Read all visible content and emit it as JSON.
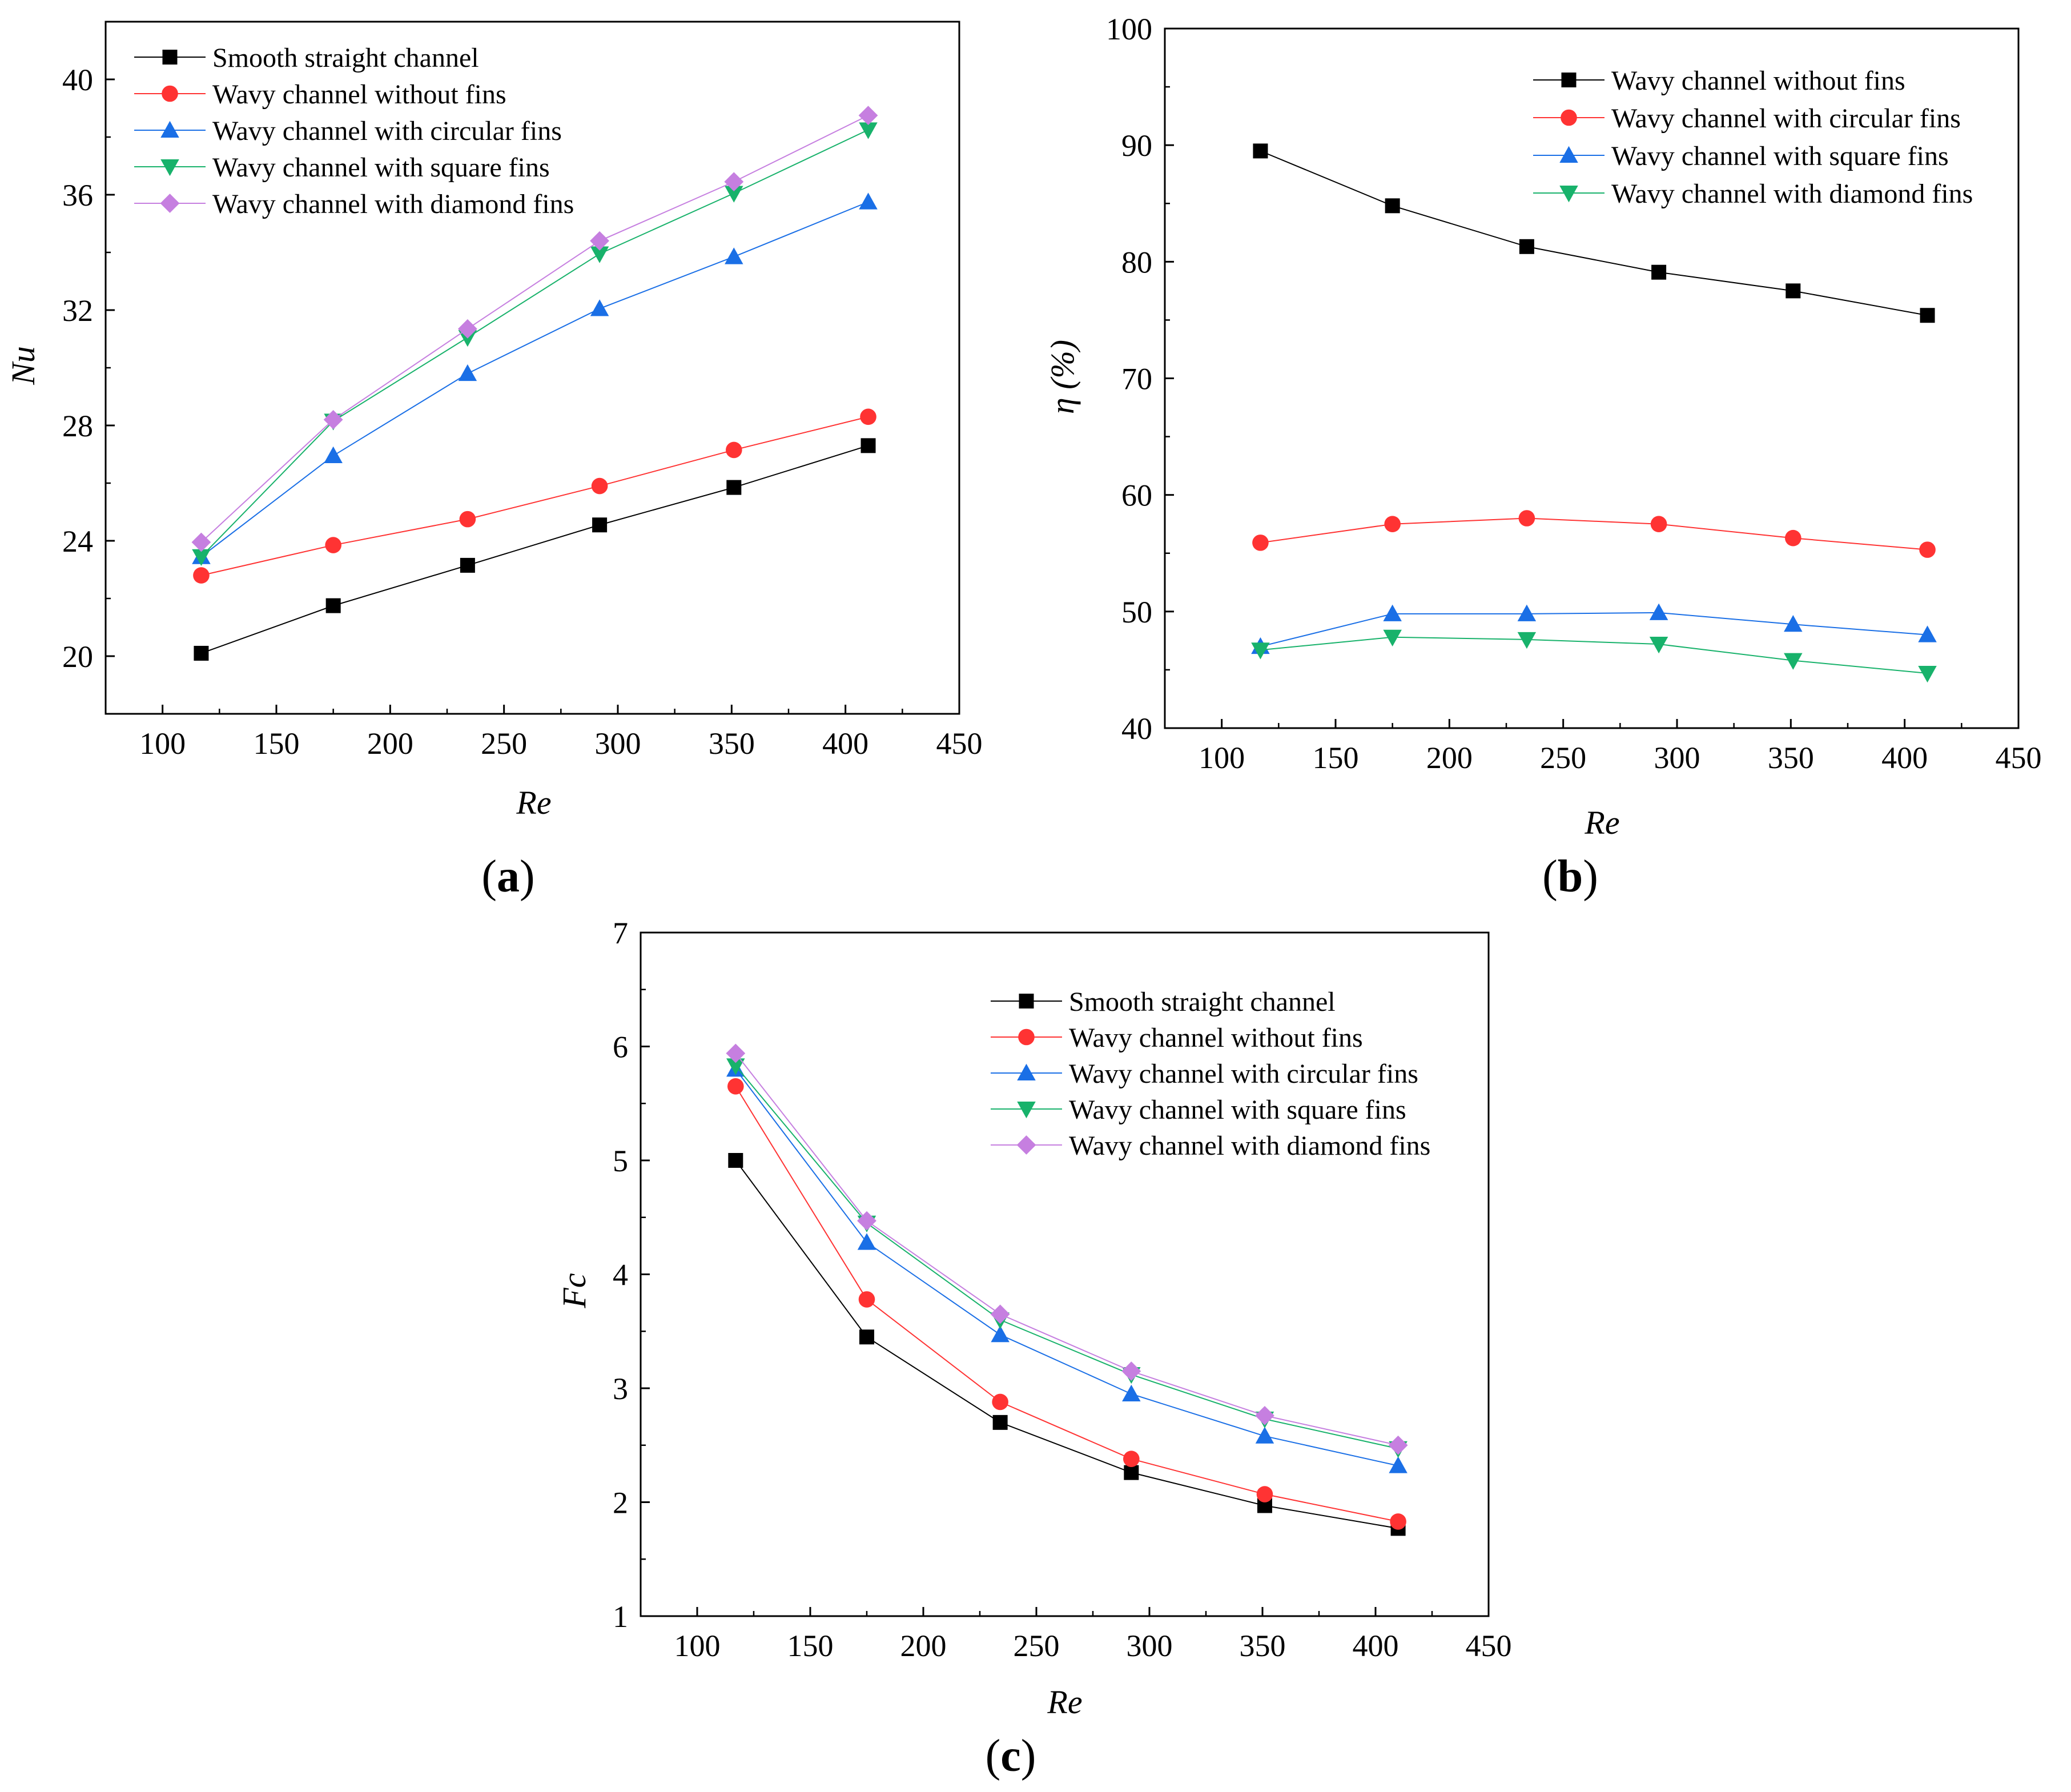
{
  "chart_data": [
    {
      "id": "a",
      "type": "line",
      "caption": "a",
      "xlabel": "Re",
      "ylabel": "Nu",
      "xlim": [
        75,
        450
      ],
      "ylim": [
        18,
        42
      ],
      "xticks": [
        100,
        150,
        200,
        250,
        300,
        350,
        400,
        450
      ],
      "yticks": [
        20,
        24,
        28,
        32,
        36,
        40
      ],
      "x": [
        117,
        175,
        234,
        292,
        351,
        410
      ],
      "legend_position": "top-left",
      "series": [
        {
          "name": "Smooth straight channel",
          "color": "#000000",
          "marker": "square",
          "values": [
            20.1,
            21.75,
            23.15,
            24.55,
            25.85,
            27.3
          ]
        },
        {
          "name": "Wavy channel without fins",
          "color": "#ff3333",
          "marker": "circle",
          "values": [
            22.8,
            23.85,
            24.75,
            25.9,
            27.15,
            28.3
          ]
        },
        {
          "name": "Wavy channel with circular fins",
          "color": "#1a6fe6",
          "marker": "triangle-up",
          "values": [
            23.45,
            26.95,
            29.8,
            32.05,
            33.85,
            35.75
          ]
        },
        {
          "name": "Wavy channel with square fins",
          "color": "#18b26b",
          "marker": "triangle-down",
          "values": [
            23.45,
            28.15,
            31.05,
            33.95,
            36.05,
            38.25
          ]
        },
        {
          "name": "Wavy channel with diamond fins",
          "color": "#c67fe0",
          "marker": "diamond",
          "values": [
            23.95,
            28.2,
            31.35,
            34.4,
            36.45,
            38.75
          ]
        }
      ]
    },
    {
      "id": "b",
      "type": "line",
      "caption": "b",
      "xlabel": "Re",
      "ylabel": "η (%)",
      "xlim": [
        75,
        450
      ],
      "ylim": [
        40,
        100
      ],
      "xticks": [
        100,
        150,
        200,
        250,
        300,
        350,
        400,
        450
      ],
      "yticks": [
        40,
        50,
        60,
        70,
        80,
        90,
        100
      ],
      "x": [
        117,
        175,
        234,
        292,
        351,
        410
      ],
      "legend_position": "top-right",
      "series": [
        {
          "name": "Wavy channel without fins",
          "color": "#000000",
          "marker": "square",
          "values": [
            89.5,
            84.8,
            81.3,
            79.1,
            77.5,
            75.4
          ]
        },
        {
          "name": "Wavy channel with circular fins",
          "color": "#ff3333",
          "marker": "circle",
          "values": [
            55.9,
            57.5,
            58.0,
            57.5,
            56.3,
            55.3
          ]
        },
        {
          "name": "Wavy channel with square fins",
          "color": "#1a6fe6",
          "marker": "triangle-up",
          "values": [
            47.0,
            49.8,
            49.8,
            49.9,
            48.9,
            48.0
          ]
        },
        {
          "name": "Wavy channel with diamond fins",
          "color": "#18b26b",
          "marker": "triangle-down",
          "values": [
            46.7,
            47.8,
            47.6,
            47.2,
            45.8,
            44.7
          ]
        }
      ]
    },
    {
      "id": "c",
      "type": "line",
      "caption": "c",
      "xlabel": "Re",
      "ylabel": "Fc",
      "xlim": [
        75,
        450
      ],
      "ylim": [
        1,
        7
      ],
      "xticks": [
        100,
        150,
        200,
        250,
        300,
        350,
        400,
        450
      ],
      "yticks": [
        1,
        2,
        3,
        4,
        5,
        6,
        7
      ],
      "x": [
        117,
        175,
        234,
        292,
        351,
        410
      ],
      "legend_position": "top-right",
      "series": [
        {
          "name": "Smooth straight channel",
          "color": "#000000",
          "marker": "square",
          "values": [
            5.0,
            3.45,
            2.7,
            2.26,
            1.97,
            1.77
          ]
        },
        {
          "name": "Wavy channel without fins",
          "color": "#ff3333",
          "marker": "circle",
          "values": [
            5.65,
            3.78,
            2.88,
            2.38,
            2.07,
            1.83
          ]
        },
        {
          "name": "Wavy channel with circular fins",
          "color": "#1a6fe6",
          "marker": "triangle-up",
          "values": [
            5.8,
            4.28,
            3.47,
            2.95,
            2.58,
            2.32
          ]
        },
        {
          "name": "Wavy channel with square fins",
          "color": "#18b26b",
          "marker": "triangle-down",
          "values": [
            5.83,
            4.45,
            3.6,
            3.12,
            2.73,
            2.47
          ]
        },
        {
          "name": "Wavy channel with diamond fins",
          "color": "#c67fe0",
          "marker": "diamond",
          "values": [
            5.94,
            4.47,
            3.65,
            3.15,
            2.76,
            2.5
          ]
        }
      ]
    }
  ]
}
